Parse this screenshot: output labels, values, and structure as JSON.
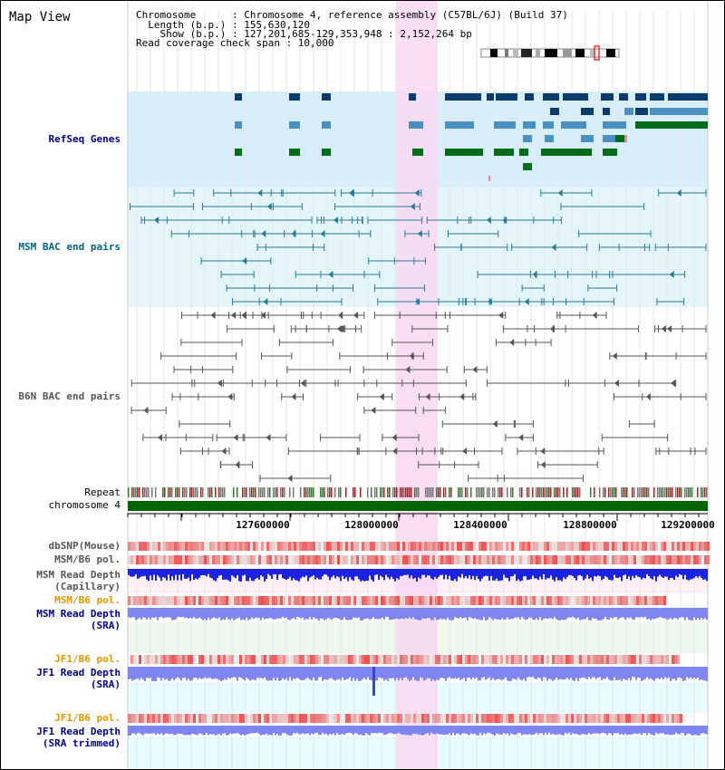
{
  "view_title": "Map View",
  "info_lines": [
    "Chromosome      : Chromosome 4, reference assembly (C57BL/6J) (Build 37)",
    "  Length (b.p.) : 155,630,120",
    "    Show (b.p.) : 127,201,685-129,353,948 : 2,152,264 bp",
    "Read coverage check span : 10,000"
  ],
  "tracks": {
    "refseq": "RefSeq Genes",
    "msm_bac": "MSM BAC end pairs",
    "b6n_bac": "B6N BAC end pairs",
    "repeat": "Repeat",
    "chromosome": "chromosome 4",
    "dbsnp": "dbSNP(Mouse)",
    "msm_b6_pol_1": "MSM/B6 pol.",
    "msm_read_depth_cap_1": "MSM Read Depth",
    "msm_read_depth_cap_2": "(Capillary)",
    "msm_b6_pol_2": "MSM/B6 pol.",
    "msm_read_depth_sra_1": "MSM Read Depth",
    "msm_read_depth_sra_2": "(SRA)",
    "jf1_b6_pol_1": "JF1/B6 pol.",
    "jf1_read_depth_sra_1": "JF1 Read Depth",
    "jf1_read_depth_sra_2": "(SRA)",
    "jf1_b6_pol_2": "JF1/B6 pol.",
    "jf1_read_depth_trim_1": "JF1 Read Depth",
    "jf1_read_depth_trim_2": "(SRA trimmed)"
  },
  "axis": {
    "ticks": [
      "127600000",
      "128000000",
      "128400000",
      "128800000",
      "129200000"
    ]
  },
  "colors": {
    "refseq_bg": "#d8eefa",
    "msm_bg": "#e4f6f9",
    "highlight": "#f8d8f2",
    "gene_navy": "#0a3a6e",
    "gene_lightblue": "#4a90c0",
    "gene_green": "#046b1a",
    "msm_line": "#2a7a9a",
    "b6n_line": "#555555",
    "chromosome_bar": "#006400",
    "depth_dark": "#1a24e0",
    "depth_light": "#8086f0"
  }
}
